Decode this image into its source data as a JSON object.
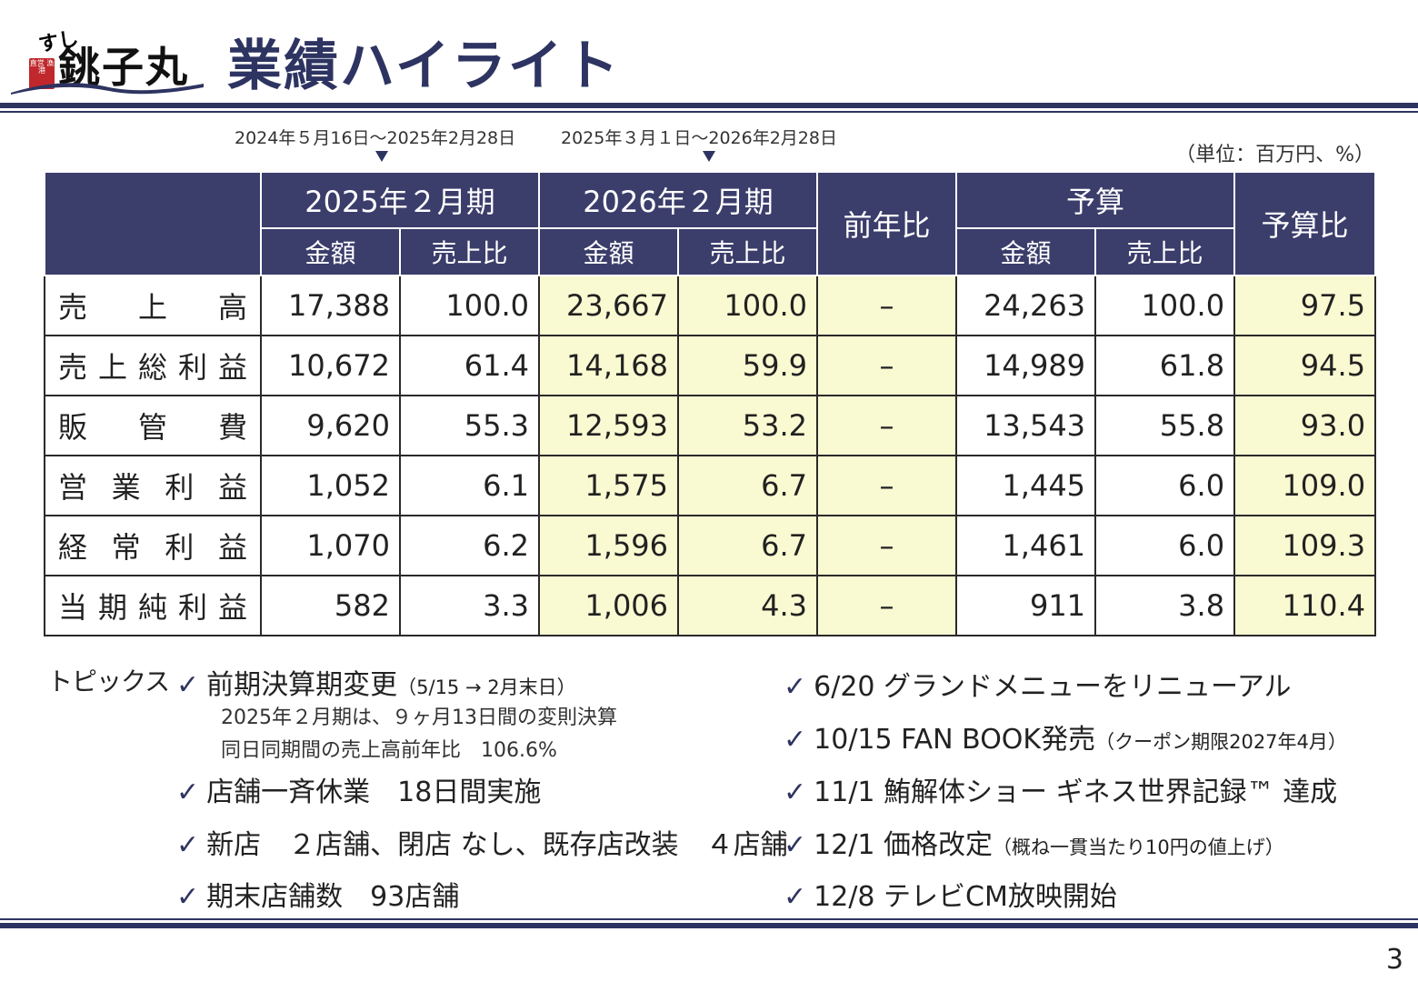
{
  "logo": {
    "sushi_text": "すし",
    "brand_text": "銚子丸",
    "stamp_text": "直営\n漁港"
  },
  "title": "業績ハイライト",
  "period_notes": [
    "2024年５月16日～2025年2月28日",
    "2025年３月１日～2026年2月28日"
  ],
  "unit_note": "（単位：百万円、%）",
  "table": {
    "header_top": [
      "2025年２月期",
      "2026年２月期",
      "前年比",
      "予算",
      "予算比"
    ],
    "header_sub": [
      "金額",
      "売上比",
      "金額",
      "売上比",
      "金額",
      "売上比"
    ],
    "rows": [
      {
        "label": "売上高",
        "fy25_amount": "17,388",
        "fy25_ratio": "100.0",
        "fy26_amount": "23,667",
        "fy26_ratio": "100.0",
        "yoy": "–",
        "budget_amount": "24,263",
        "budget_ratio": "100.0",
        "budget_vs": "97.5"
      },
      {
        "label": "売上総利益",
        "fy25_amount": "10,672",
        "fy25_ratio": "61.4",
        "fy26_amount": "14,168",
        "fy26_ratio": "59.9",
        "yoy": "–",
        "budget_amount": "14,989",
        "budget_ratio": "61.8",
        "budget_vs": "94.5"
      },
      {
        "label": "販管費",
        "fy25_amount": "9,620",
        "fy25_ratio": "55.3",
        "fy26_amount": "12,593",
        "fy26_ratio": "53.2",
        "yoy": "–",
        "budget_amount": "13,543",
        "budget_ratio": "55.8",
        "budget_vs": "93.0"
      },
      {
        "label": "営業利益",
        "fy25_amount": "1,052",
        "fy25_ratio": "6.1",
        "fy26_amount": "1,575",
        "fy26_ratio": "6.7",
        "yoy": "–",
        "budget_amount": "1,445",
        "budget_ratio": "6.0",
        "budget_vs": "109.0"
      },
      {
        "label": "経常利益",
        "fy25_amount": "1,070",
        "fy25_ratio": "6.2",
        "fy26_amount": "1,596",
        "fy26_ratio": "6.7",
        "yoy": "–",
        "budget_amount": "1,461",
        "budget_ratio": "6.0",
        "budget_vs": "109.3"
      },
      {
        "label": "当期純利益",
        "fy25_amount": "582",
        "fy25_ratio": "3.3",
        "fy26_amount": "1,006",
        "fy26_ratio": "4.3",
        "yoy": "–",
        "budget_amount": "911",
        "budget_ratio": "3.8",
        "budget_vs": "110.4"
      }
    ]
  },
  "topics": {
    "label": "トピックス",
    "check": "✓",
    "left": [
      {
        "text": "前期決算期変更",
        "note": "（5/15 → 2月末日）"
      },
      {
        "text": "店舗一斉休業　18日間実施"
      },
      {
        "text": "新店　２店舗、閉店 なし、既存店改装　４店舗"
      },
      {
        "text": "期末店舗数　93店舗"
      }
    ],
    "left_subnotes": [
      "2025年２月期は、９ヶ月13日間の変則決算",
      "同日同期間の売上高前年比　106.6%"
    ],
    "right": [
      {
        "text": "6/20 グランドメニューをリニューアル"
      },
      {
        "text": "10/15 FAN BOOK発売",
        "note": "（クーポン期限2027年4月）"
      },
      {
        "text": "11/1 鮪解体ショー ギネス世界記録™ 達成"
      },
      {
        "text": "12/1 価格改定",
        "note": "（概ね一貫当たり10円の値上げ）"
      },
      {
        "text": "12/8 テレビCM放映開始"
      }
    ]
  },
  "page_number": "3",
  "colors": {
    "navy": "#3b3d6b",
    "title": "#2e3461",
    "highlight": "#fafad2",
    "stamp_red": "#c0282d"
  }
}
